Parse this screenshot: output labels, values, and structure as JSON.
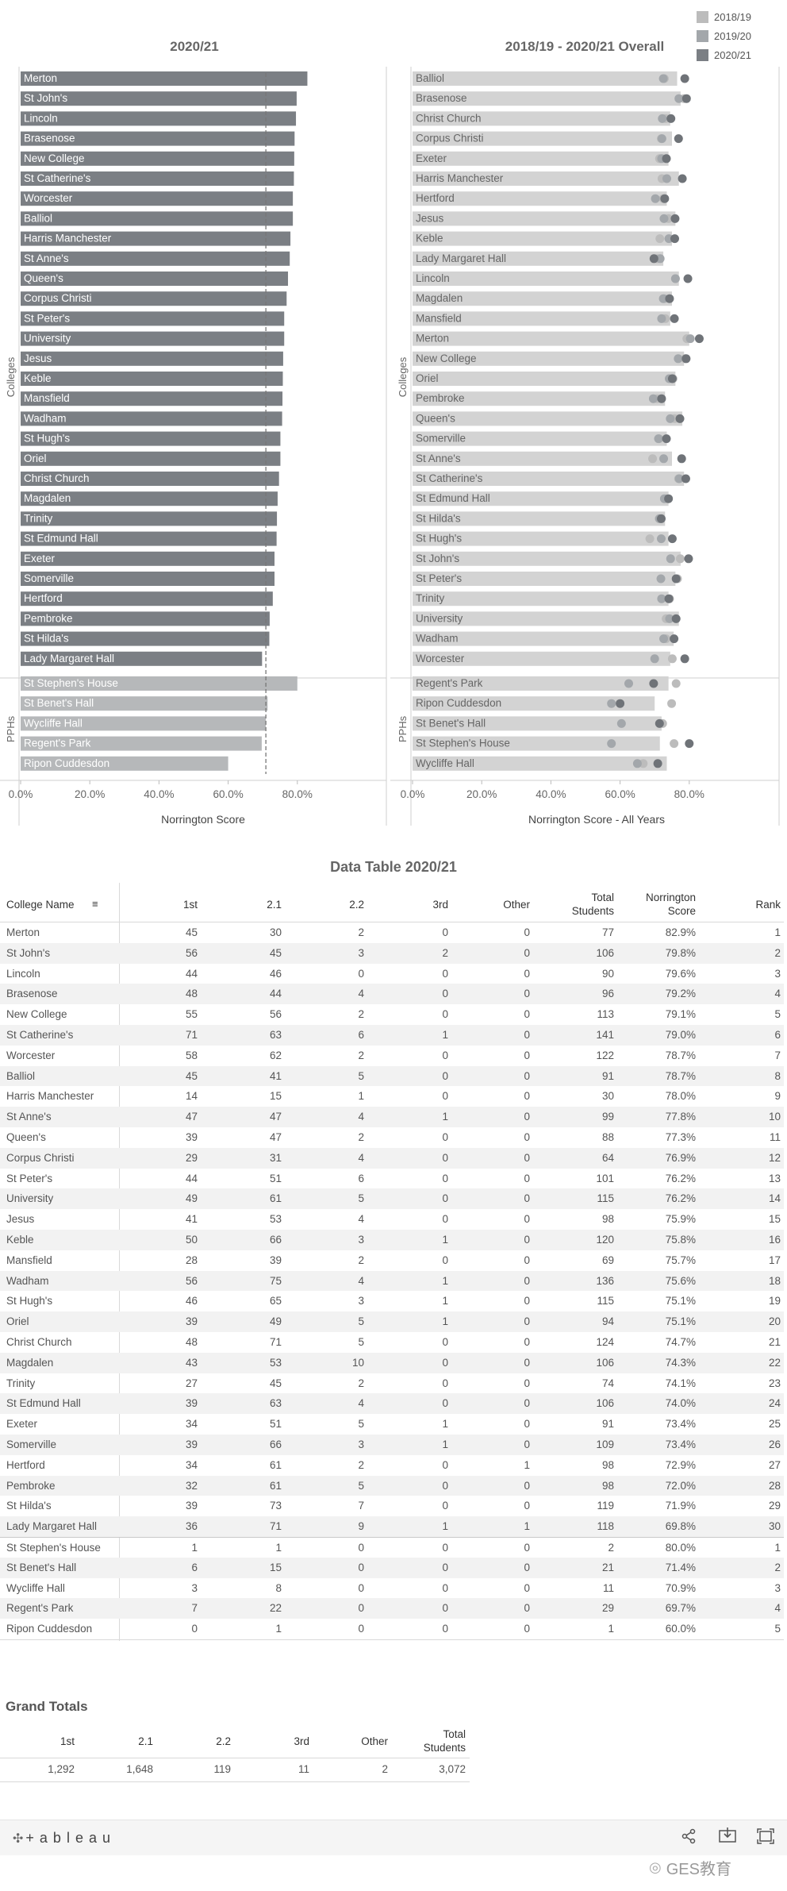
{
  "legend": [
    {
      "label": "2018/19",
      "color": "#bcbcbc"
    },
    {
      "label": "2019/20",
      "color": "#a3a7ab"
    },
    {
      "label": "2020/21",
      "color": "#7b7f84"
    }
  ],
  "chart_data": [
    {
      "type": "bar",
      "orientation": "horizontal",
      "title": "2020/21",
      "xlabel": "Norrington Score",
      "ylabel_groups": [
        "Colleges",
        "PPHs"
      ],
      "xlim": [
        0,
        90
      ],
      "xticks": [
        "0.0%",
        "20.0%",
        "40.0%",
        "60.0%",
        "80.0%"
      ],
      "reference_line": 70.9,
      "colleges": {
        "categories": [
          "Merton",
          "St John's",
          "Lincoln",
          "Brasenose",
          "New College",
          "St Catherine's",
          "Worcester",
          "Balliol",
          "Harris Manchester",
          "St Anne's",
          "Queen's",
          "Corpus Christi",
          "St Peter's",
          "University",
          "Jesus",
          "Keble",
          "Mansfield",
          "Wadham",
          "St Hugh's",
          "Oriel",
          "Christ Church",
          "Magdalen",
          "Trinity",
          "St Edmund Hall",
          "Exeter",
          "Somerville",
          "Hertford",
          "Pembroke",
          "St Hilda's",
          "Lady Margaret Hall"
        ],
        "values": [
          82.9,
          79.8,
          79.6,
          79.2,
          79.1,
          79.0,
          78.7,
          78.7,
          78.0,
          77.8,
          77.3,
          76.9,
          76.2,
          76.2,
          75.9,
          75.8,
          75.7,
          75.6,
          75.1,
          75.1,
          74.7,
          74.3,
          74.1,
          74.0,
          73.4,
          73.4,
          72.9,
          72.0,
          71.9,
          69.8
        ]
      },
      "pphs": {
        "categories": [
          "St Stephen's House",
          "St Benet's Hall",
          "Wycliffe Hall",
          "Regent's Park",
          "Ripon Cuddesdon"
        ],
        "values": [
          80.0,
          71.4,
          70.9,
          69.7,
          60.0
        ]
      }
    },
    {
      "type": "bar+dot",
      "orientation": "horizontal",
      "title": "2018/19 - 2020/21 Overall",
      "xlabel": "Norrington Score - All Years",
      "ylabel_groups": [
        "Colleges",
        "PPHs"
      ],
      "xlim": [
        0,
        90
      ],
      "xticks": [
        "0.0%",
        "20.0%",
        "40.0%",
        "60.0%",
        "80.0%"
      ],
      "series_names": [
        "2018/19",
        "2019/20",
        "2020/21"
      ],
      "colleges": {
        "categories": [
          "Balliol",
          "Brasenose",
          "Christ Church",
          "Corpus Christi",
          "Exeter",
          "Harris Manchester",
          "Hertford",
          "Jesus",
          "Keble",
          "Lady Margaret Hall",
          "Lincoln",
          "Magdalen",
          "Mansfield",
          "Merton",
          "New College",
          "Oriel",
          "Pembroke",
          "Queen's",
          "Somerville",
          "St Anne's",
          "St Catherine's",
          "St Edmund Hall",
          "St Hilda's",
          "St Hugh's",
          "St John's",
          "St Peter's",
          "Trinity",
          "University",
          "Wadham",
          "Worcester"
        ],
        "overall": [
          76.5,
          77.5,
          74.5,
          75.0,
          74.0,
          77.0,
          73.5,
          76.0,
          75.0,
          72.5,
          77.0,
          75.0,
          74.5,
          80.0,
          78.5,
          76.0,
          73.0,
          78.0,
          73.5,
          75.0,
          78.5,
          74.0,
          73.0,
          74.0,
          77.5,
          76.0,
          74.0,
          77.0,
          75.5,
          74.5
        ],
        "y2018": [
          72.8,
          78.5,
          73.2,
          71.9,
          71.4,
          72.1,
          72.5,
          74.0,
          71.5,
          70.8,
          76.0,
          72.8,
          73.1,
          79.3,
          78.8,
          75.3,
          70.7,
          75.8,
          71.3,
          69.4,
          76.9,
          73.3,
          71.3,
          68.6,
          77.4,
          76.6,
          74.3,
          73.3,
          73.3,
          75.1
        ],
        "y2019": [
          72.5,
          77.0,
          72.2,
          72.1,
          72.0,
          73.5,
          70.2,
          72.7,
          74.1,
          71.6,
          76.0,
          72.5,
          72.0,
          80.3,
          76.8,
          74.2,
          69.6,
          74.5,
          71.1,
          72.6,
          77.1,
          72.8,
          71.4,
          71.9,
          74.6,
          71.8,
          72.0,
          74.3,
          72.6,
          70.0
        ],
        "y2020": [
          78.7,
          79.2,
          74.7,
          76.9,
          73.4,
          78.0,
          72.9,
          75.9,
          75.8,
          69.8,
          79.6,
          74.3,
          75.7,
          82.9,
          79.1,
          75.1,
          72.0,
          77.3,
          73.4,
          77.8,
          79.0,
          74.0,
          71.9,
          75.1,
          79.8,
          76.2,
          74.1,
          76.2,
          75.6,
          78.7
        ]
      },
      "pphs": {
        "categories": [
          "Regent's Park",
          "Ripon Cuddesdon",
          "St Benet's Hall",
          "St Stephen's House",
          "Wycliffe Hall"
        ],
        "overall": [
          74.0,
          70.0,
          72.0,
          71.5,
          73.5
        ],
        "y2018": [
          76.2,
          74.9,
          72.3,
          75.6,
          66.7
        ],
        "y2019": [
          62.5,
          57.5,
          60.4,
          57.5,
          65.0
        ],
        "y2020": [
          69.7,
          60.0,
          71.4,
          80.0,
          70.9
        ]
      }
    }
  ],
  "data_table": {
    "title": "Data Table 2020/21",
    "headers": [
      "College Name",
      "1st",
      "2.1",
      "2.2",
      "3rd",
      "Other",
      "Total\nStudents",
      "Norrington\nScore",
      "Rank"
    ],
    "rows": [
      [
        "Merton",
        "45",
        "30",
        "2",
        "0",
        "0",
        "77",
        "82.9%",
        "1"
      ],
      [
        "St John's",
        "56",
        "45",
        "3",
        "2",
        "0",
        "106",
        "79.8%",
        "2"
      ],
      [
        "Lincoln",
        "44",
        "46",
        "0",
        "0",
        "0",
        "90",
        "79.6%",
        "3"
      ],
      [
        "Brasenose",
        "48",
        "44",
        "4",
        "0",
        "0",
        "96",
        "79.2%",
        "4"
      ],
      [
        "New College",
        "55",
        "56",
        "2",
        "0",
        "0",
        "113",
        "79.1%",
        "5"
      ],
      [
        "St Catherine's",
        "71",
        "63",
        "6",
        "1",
        "0",
        "141",
        "79.0%",
        "6"
      ],
      [
        "Worcester",
        "58",
        "62",
        "2",
        "0",
        "0",
        "122",
        "78.7%",
        "7"
      ],
      [
        "Balliol",
        "45",
        "41",
        "5",
        "0",
        "0",
        "91",
        "78.7%",
        "8"
      ],
      [
        "Harris Manchester",
        "14",
        "15",
        "1",
        "0",
        "0",
        "30",
        "78.0%",
        "9"
      ],
      [
        "St Anne's",
        "47",
        "47",
        "4",
        "1",
        "0",
        "99",
        "77.8%",
        "10"
      ],
      [
        "Queen's",
        "39",
        "47",
        "2",
        "0",
        "0",
        "88",
        "77.3%",
        "11"
      ],
      [
        "Corpus Christi",
        "29",
        "31",
        "4",
        "0",
        "0",
        "64",
        "76.9%",
        "12"
      ],
      [
        "St Peter's",
        "44",
        "51",
        "6",
        "0",
        "0",
        "101",
        "76.2%",
        "13"
      ],
      [
        "University",
        "49",
        "61",
        "5",
        "0",
        "0",
        "115",
        "76.2%",
        "14"
      ],
      [
        "Jesus",
        "41",
        "53",
        "4",
        "0",
        "0",
        "98",
        "75.9%",
        "15"
      ],
      [
        "Keble",
        "50",
        "66",
        "3",
        "1",
        "0",
        "120",
        "75.8%",
        "16"
      ],
      [
        "Mansfield",
        "28",
        "39",
        "2",
        "0",
        "0",
        "69",
        "75.7%",
        "17"
      ],
      [
        "Wadham",
        "56",
        "75",
        "4",
        "1",
        "0",
        "136",
        "75.6%",
        "18"
      ],
      [
        "St Hugh's",
        "46",
        "65",
        "3",
        "1",
        "0",
        "115",
        "75.1%",
        "19"
      ],
      [
        "Oriel",
        "39",
        "49",
        "5",
        "1",
        "0",
        "94",
        "75.1%",
        "20"
      ],
      [
        "Christ Church",
        "48",
        "71",
        "5",
        "0",
        "0",
        "124",
        "74.7%",
        "21"
      ],
      [
        "Magdalen",
        "43",
        "53",
        "10",
        "0",
        "0",
        "106",
        "74.3%",
        "22"
      ],
      [
        "Trinity",
        "27",
        "45",
        "2",
        "0",
        "0",
        "74",
        "74.1%",
        "23"
      ],
      [
        "St Edmund Hall",
        "39",
        "63",
        "4",
        "0",
        "0",
        "106",
        "74.0%",
        "24"
      ],
      [
        "Exeter",
        "34",
        "51",
        "5",
        "1",
        "0",
        "91",
        "73.4%",
        "25"
      ],
      [
        "Somerville",
        "39",
        "66",
        "3",
        "1",
        "0",
        "109",
        "73.4%",
        "26"
      ],
      [
        "Hertford",
        "34",
        "61",
        "2",
        "0",
        "1",
        "98",
        "72.9%",
        "27"
      ],
      [
        "Pembroke",
        "32",
        "61",
        "5",
        "0",
        "0",
        "98",
        "72.0%",
        "28"
      ],
      [
        "St Hilda's",
        "39",
        "73",
        "7",
        "0",
        "0",
        "119",
        "71.9%",
        "29"
      ],
      [
        "Lady Margaret Hall",
        "36",
        "71",
        "9",
        "1",
        "1",
        "118",
        "69.8%",
        "30"
      ],
      [
        "St Stephen's House",
        "1",
        "1",
        "0",
        "0",
        "0",
        "2",
        "80.0%",
        "1"
      ],
      [
        "St Benet's Hall",
        "6",
        "15",
        "0",
        "0",
        "0",
        "21",
        "71.4%",
        "2"
      ],
      [
        "Wycliffe Hall",
        "3",
        "8",
        "0",
        "0",
        "0",
        "11",
        "70.9%",
        "3"
      ],
      [
        "Regent's Park",
        "7",
        "22",
        "0",
        "0",
        "0",
        "29",
        "69.7%",
        "4"
      ],
      [
        "Ripon Cuddesdon",
        "0",
        "1",
        "0",
        "0",
        "0",
        "1",
        "60.0%",
        "5"
      ]
    ]
  },
  "grand_totals": {
    "title": "Grand Totals",
    "headers": [
      "1st",
      "2.1",
      "2.2",
      "3rd",
      "Other",
      "Total\nStudents"
    ],
    "values": [
      "1,292",
      "1,648",
      "119",
      "11",
      "2",
      "3,072"
    ]
  },
  "footer": {
    "brand": "+ a b l e a u",
    "watermark": "GES教育"
  }
}
